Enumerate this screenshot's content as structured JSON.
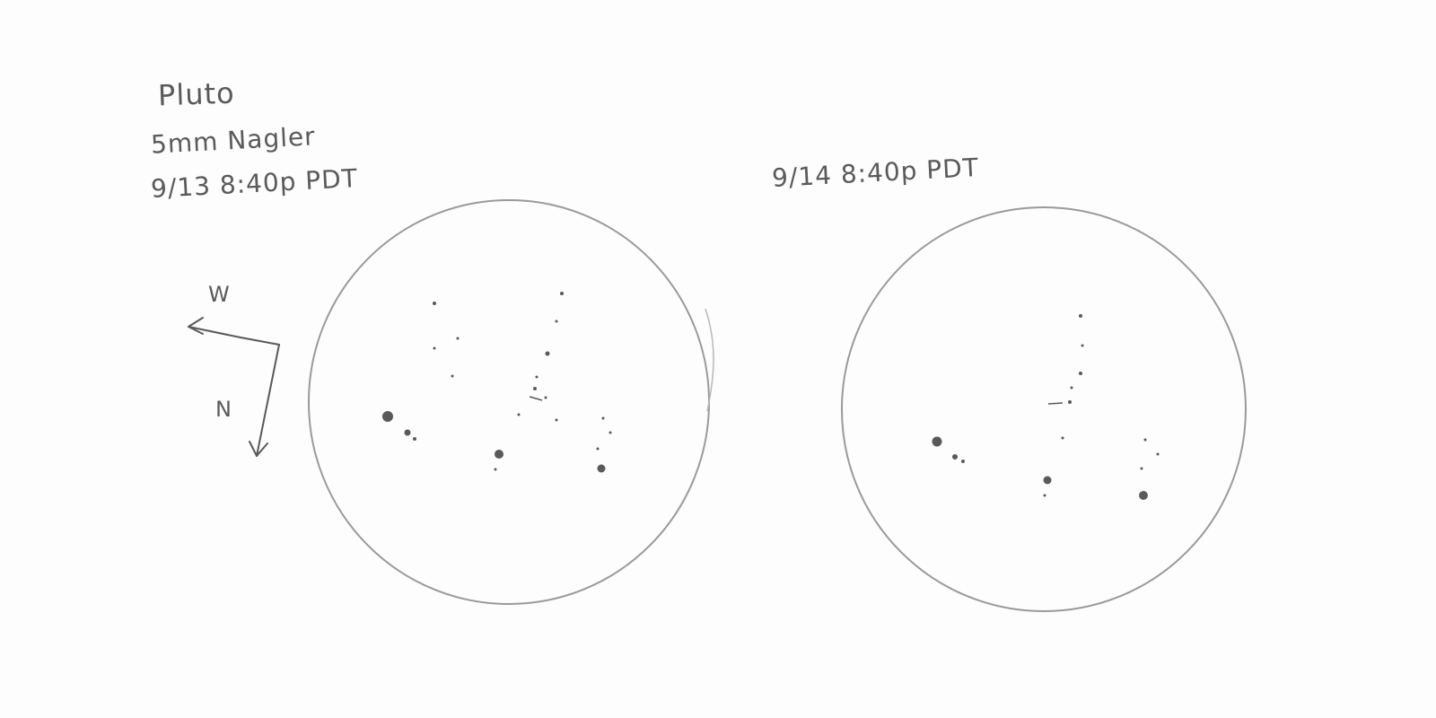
{
  "sketch": {
    "title": "Pluto",
    "eyepiece": "5mm Nagler",
    "observation_1": {
      "timestamp": "9/13  8:40p PDT"
    },
    "observation_2": {
      "timestamp": "9/14  8:40p PDT"
    },
    "orientation": {
      "west_label": "W",
      "north_label": "N"
    }
  },
  "colors": {
    "paper": "#fdfdfd",
    "pencil": "#5a5a5a",
    "circle_outline": "#9a9a9a"
  }
}
